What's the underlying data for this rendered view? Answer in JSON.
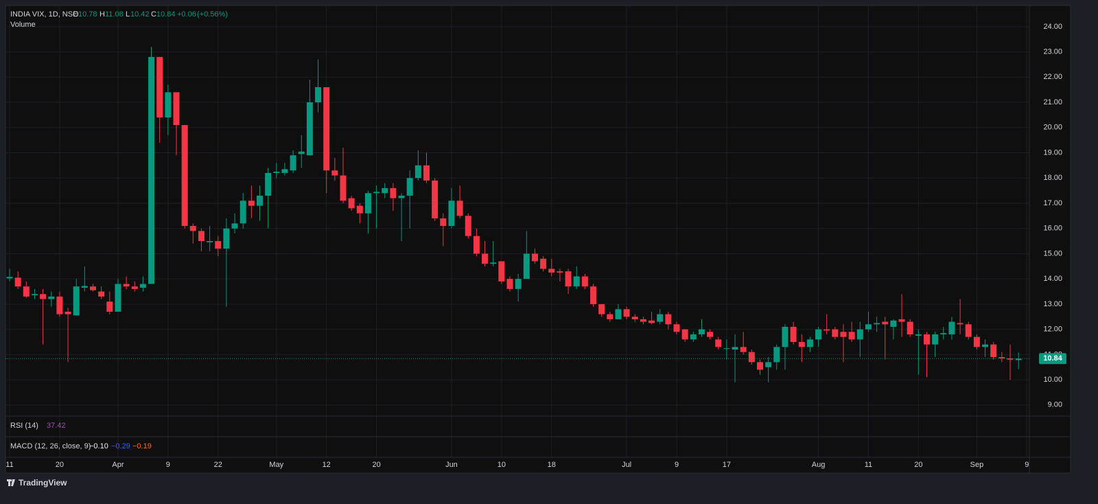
{
  "chart_data": {
    "type": "candlestick",
    "title": "INDIA VIX, 1D, NSE",
    "subtitle": "Volume",
    "ohlc_labels": [
      "O",
      "H",
      "L",
      "C"
    ],
    "change": "+0.06",
    "change_pct": "(+0.56%)",
    "up_color": "#089981",
    "down_color": "#f23645",
    "grid": true,
    "open": [
      14.02,
      14.05,
      13.7,
      13.35,
      13.4,
      13.2,
      13.3,
      12.7,
      12.55,
      13.65,
      13.7,
      13.5,
      13.1,
      12.7,
      13.8,
      13.7,
      13.65,
      13.8,
      22.8,
      20.4,
      21.4,
      20.1,
      16.1,
      15.9,
      15.45,
      15.5,
      15.2,
      16.0,
      16.2,
      17.1,
      16.9,
      17.3,
      18.2,
      18.2,
      18.3,
      18.95,
      18.9,
      21.0,
      21.6,
      18.3,
      18.1,
      17.2,
      16.9,
      16.6,
      17.4,
      17.4,
      17.6,
      17.2,
      17.3,
      18.0,
      18.5,
      17.9,
      16.4,
      16.1,
      17.1,
      16.5,
      15.7,
      15.0,
      14.6,
      14.7,
      14.0,
      13.6,
      14.0,
      15.0,
      14.8,
      14.4,
      14.3,
      14.3,
      13.7,
      14.1,
      13.7,
      13.0,
      12.6,
      12.4,
      12.8,
      12.5,
      12.4,
      12.35,
      12.3,
      12.6,
      12.2,
      12.0,
      11.6,
      11.8,
      11.9,
      11.6,
      11.25,
      11.2,
      11.3,
      11.1,
      10.7,
      10.5,
      10.7,
      11.3,
      12.1,
      11.5,
      11.3,
      11.6,
      12.0,
      12.0,
      11.9,
      11.9,
      11.6,
      12.0,
      12.2,
      12.3,
      12.1,
      12.4,
      12.3,
      11.75,
      11.8,
      11.4,
      11.8,
      11.8,
      12.25,
      12.2,
      11.7,
      11.3,
      11.4,
      10.9,
      10.85,
      10.78
    ],
    "high": [
      14.4,
      14.3,
      13.9,
      13.6,
      13.6,
      13.5,
      13.5,
      12.85,
      14.0,
      14.5,
      13.8,
      13.7,
      13.5,
      14.0,
      14.1,
      13.9,
      14.1,
      23.2,
      22.8,
      21.7,
      21.4,
      20.1,
      16.2,
      16.0,
      16.1,
      15.7,
      16.4,
      16.6,
      17.4,
      17.7,
      17.7,
      18.4,
      18.6,
      18.6,
      19.1,
      19.7,
      21.9,
      22.7,
      21.6,
      18.8,
      19.2,
      17.3,
      17.0,
      17.5,
      17.7,
      17.8,
      17.8,
      17.4,
      18.3,
      19.1,
      19.0,
      18.0,
      16.6,
      17.6,
      17.7,
      16.6,
      16.0,
      15.5,
      15.5,
      14.7,
      14.1,
      14.2,
      15.9,
      15.2,
      14.9,
      14.8,
      14.4,
      14.4,
      14.5,
      14.2,
      13.8,
      13.0,
      12.7,
      13.0,
      12.9,
      12.6,
      12.5,
      12.7,
      12.8,
      12.7,
      12.3,
      12.0,
      11.9,
      12.4,
      12.0,
      11.7,
      11.6,
      11.8,
      11.9,
      11.2,
      10.8,
      10.9,
      11.4,
      12.2,
      12.3,
      11.8,
      11.7,
      12.1,
      12.6,
      12.1,
      12.2,
      12.3,
      12.3,
      12.7,
      12.5,
      12.5,
      12.4,
      13.4,
      12.4,
      12.0,
      11.9,
      11.9,
      12.1,
      12.5,
      13.2,
      12.3,
      11.8,
      11.6,
      11.5,
      11.1,
      11.4,
      11.08
    ],
    "low": [
      13.9,
      13.6,
      13.25,
      13.2,
      11.4,
      12.9,
      12.5,
      10.7,
      12.55,
      13.5,
      13.5,
      13.2,
      12.6,
      12.7,
      13.6,
      13.5,
      13.5,
      13.8,
      19.4,
      19.7,
      18.9,
      16.0,
      15.4,
      15.1,
      15.1,
      14.9,
      12.9,
      15.8,
      16.0,
      16.4,
      16.3,
      16.0,
      18.0,
      18.1,
      18.2,
      18.4,
      18.9,
      20.6,
      17.4,
      17.9,
      17.0,
      16.7,
      16.2,
      15.8,
      16.0,
      17.2,
      16.7,
      15.5,
      16.0,
      17.9,
      17.8,
      16.3,
      15.3,
      16.0,
      16.4,
      15.6,
      14.9,
      14.5,
      14.5,
      13.8,
      13.5,
      13.1,
      14.0,
      14.6,
      14.3,
      14.1,
      13.9,
      13.4,
      13.6,
      13.6,
      12.9,
      12.5,
      12.3,
      12.4,
      12.4,
      12.3,
      12.2,
      12.2,
      12.2,
      12.0,
      11.8,
      11.5,
      11.5,
      11.7,
      11.6,
      11.2,
      10.8,
      9.9,
      11.0,
      10.6,
      10.2,
      9.9,
      10.4,
      10.4,
      11.4,
      10.7,
      11.1,
      11.3,
      11.8,
      11.6,
      10.7,
      11.5,
      10.9,
      11.9,
      11.9,
      10.8,
      11.6,
      11.7,
      11.7,
      10.2,
      10.1,
      10.9,
      11.6,
      11.6,
      11.8,
      11.6,
      11.2,
      10.9,
      10.8,
      10.7,
      10.0,
      10.42
    ],
    "close": [
      14.08,
      13.7,
      13.3,
      13.4,
      13.2,
      13.3,
      12.6,
      12.6,
      13.7,
      13.72,
      13.55,
      13.3,
      12.7,
      13.8,
      13.7,
      13.6,
      13.8,
      22.8,
      20.4,
      21.4,
      20.1,
      16.1,
      15.9,
      15.5,
      15.5,
      15.2,
      16.0,
      16.2,
      17.1,
      16.9,
      17.3,
      18.2,
      18.25,
      18.35,
      18.9,
      19.05,
      21.0,
      21.6,
      18.3,
      18.1,
      17.1,
      16.8,
      16.6,
      17.4,
      17.45,
      17.6,
      17.2,
      17.3,
      18.0,
      18.5,
      17.9,
      16.4,
      16.1,
      17.1,
      16.5,
      15.7,
      15.0,
      14.6,
      14.65,
      13.9,
      13.6,
      14.0,
      15.0,
      14.7,
      14.4,
      14.25,
      14.25,
      13.7,
      14.1,
      13.7,
      13.0,
      12.6,
      12.4,
      12.8,
      12.5,
      12.4,
      12.3,
      12.25,
      12.6,
      12.2,
      11.9,
      11.6,
      11.8,
      12.0,
      11.7,
      11.3,
      11.25,
      11.3,
      11.1,
      10.7,
      10.4,
      10.7,
      11.3,
      12.1,
      11.5,
      11.3,
      11.6,
      12.0,
      11.95,
      11.7,
      11.7,
      11.6,
      12.0,
      12.2,
      12.25,
      12.2,
      12.35,
      12.3,
      11.8,
      11.8,
      11.4,
      11.8,
      11.85,
      12.3,
      12.2,
      11.7,
      11.3,
      11.4,
      10.9,
      10.85,
      10.8,
      10.84
    ],
    "ylim": [
      8.56,
      24.84
    ],
    "yticks": [
      {
        "value": 9,
        "label": "9.00"
      },
      {
        "value": 10,
        "label": "10.00"
      },
      {
        "value": 11,
        "label": "11.00"
      },
      {
        "value": 12,
        "label": "12.00"
      },
      {
        "value": 13,
        "label": "13.00"
      },
      {
        "value": 14,
        "label": "14.00"
      },
      {
        "value": 15,
        "label": "15.00"
      },
      {
        "value": 16,
        "label": "16.00"
      },
      {
        "value": 17,
        "label": "17.00"
      },
      {
        "value": 18,
        "label": "18.00"
      },
      {
        "value": 19,
        "label": "19.00"
      },
      {
        "value": 20,
        "label": "20.00"
      },
      {
        "value": 21,
        "label": "21.00"
      },
      {
        "value": 22,
        "label": "22.00"
      },
      {
        "value": 23,
        "label": "23.00"
      },
      {
        "value": 24,
        "label": "24.00"
      }
    ],
    "xticks": [
      {
        "value": 0,
        "label": "11"
      },
      {
        "value": 6,
        "label": "20"
      },
      {
        "value": 13,
        "label": "Apr"
      },
      {
        "value": 19,
        "label": "9"
      },
      {
        "value": 25,
        "label": "22"
      },
      {
        "value": 32,
        "label": "May"
      },
      {
        "value": 38,
        "label": "12"
      },
      {
        "value": 44,
        "label": "20"
      },
      {
        "value": 53,
        "label": "Jun"
      },
      {
        "value": 59,
        "label": "10"
      },
      {
        "value": 65,
        "label": "18"
      },
      {
        "value": 74,
        "label": "Jul"
      },
      {
        "value": 80,
        "label": "9"
      },
      {
        "value": 86,
        "label": "17"
      },
      {
        "value": 97,
        "label": "Aug"
      },
      {
        "value": 103,
        "label": "11"
      },
      {
        "value": 109,
        "label": "20"
      },
      {
        "value": 116,
        "label": "Sep"
      },
      {
        "value": 122,
        "label": "9"
      }
    ]
  },
  "indicators": {
    "rsi": {
      "label": "RSI (14)",
      "value": 37.42
    },
    "macd": {
      "label": "MACD (12, 26, close, 9)",
      "values": [
        "−0.10",
        "−0.29",
        "−0.19"
      ]
    }
  },
  "footer": {
    "brand": "TradingView"
  }
}
